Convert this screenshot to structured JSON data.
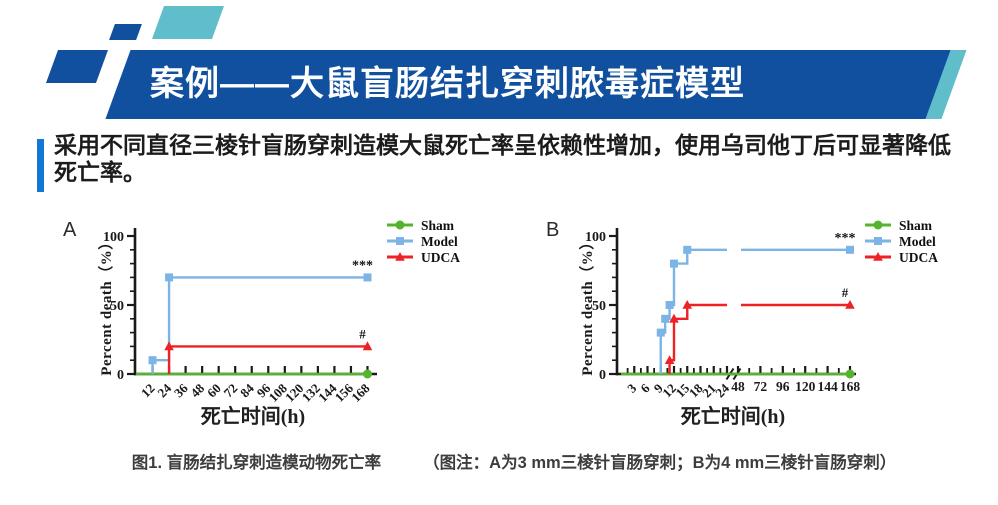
{
  "header": {
    "title": "案例——大鼠盲肠结扎穿刺脓毒症模型"
  },
  "intro": {
    "lines": [
      "采用不同直径三棱针盲肠穿刺造模大鼠死亡率呈依赖性增加，使用乌司他丁后可显著降低",
      "死亡率。"
    ]
  },
  "caption": {
    "figure_label": "图1. 盲肠结扎穿刺造模动物死亡率",
    "note": "（图注：A为3 mm三棱针盲肠穿刺；B为4 mm三棱针盲肠穿刺）"
  },
  "colors": {
    "banner_blue": "#10509f",
    "teal": "#5fbeca",
    "accent_bar": "#1377d6",
    "sham_green": "#55b42e",
    "model_blue": "#7db4e6",
    "udca_red": "#ed2224",
    "axis": "#1a1a1a",
    "text_dark": "#1c1c1c",
    "caption_gray": "#3d3d3d"
  },
  "chart_data": [
    {
      "type": "line",
      "panel_label": "A",
      "xlabel": "死亡时间(h)",
      "ylabel": "Percent death（%）",
      "ylim": [
        0,
        100
      ],
      "yticks": [
        0,
        50,
        100
      ],
      "y_minor_step": 10,
      "x_axis": {
        "break": false,
        "segments": [
          {
            "range": [
              0,
              172
            ],
            "ticks": [
              12,
              24,
              36,
              48,
              60,
              72,
              84,
              96,
              108,
              120,
              132,
              144,
              156,
              168
            ],
            "minor_step": null,
            "label_rotation": -45
          }
        ]
      },
      "legend_position": "top-right",
      "series": [
        {
          "name": "Sham",
          "color_key": "sham_green",
          "marker": "circle",
          "points": [
            [
              0,
              0
            ],
            [
              168,
              0
            ]
          ],
          "markers": [
            [
              168,
              0
            ]
          ],
          "gap_at_break": false
        },
        {
          "name": "Model",
          "color_key": "model_blue",
          "marker": "square",
          "points": [
            [
              12,
              0
            ],
            [
              12,
              10
            ],
            [
              24,
              10
            ],
            [
              24,
              70
            ],
            [
              168,
              70
            ]
          ],
          "markers": [
            [
              12,
              10
            ],
            [
              24,
              70
            ],
            [
              168,
              70
            ]
          ],
          "gap_at_break": false
        },
        {
          "name": "UDCA",
          "color_key": "udca_red",
          "marker": "triangle",
          "points": [
            [
              24,
              0
            ],
            [
              24,
              20
            ],
            [
              168,
              20
            ]
          ],
          "markers": [
            [
              24,
              20
            ],
            [
              168,
              20
            ]
          ],
          "gap_at_break": false
        }
      ],
      "annotations": [
        {
          "text": "***",
          "x": 168,
          "y": 70
        },
        {
          "text": "#",
          "x": 168,
          "y": 20
        }
      ]
    },
    {
      "type": "line",
      "panel_label": "B",
      "xlabel": "死亡时间(h)",
      "ylabel": "Percent death（%）",
      "ylim": [
        0,
        100
      ],
      "yticks": [
        0,
        50,
        100
      ],
      "y_minor_step": 10,
      "x_axis": {
        "break": true,
        "segments": [
          {
            "range": [
              0,
              24
            ],
            "ticks": [
              3,
              6,
              9,
              12,
              15,
              18,
              21,
              24
            ],
            "minor_step": 1.5,
            "label_rotation": -45
          },
          {
            "range": [
              48,
              168
            ],
            "ticks": [
              48,
              72,
              96,
              120,
              144,
              168
            ],
            "minor_step": 12,
            "label_rotation": 0
          }
        ]
      },
      "legend_position": "top-right",
      "series": [
        {
          "name": "Sham",
          "color_key": "sham_green",
          "marker": "circle",
          "points": [
            [
              0,
              0
            ],
            [
              168,
              0
            ]
          ],
          "markers": [
            [
              168,
              0
            ]
          ],
          "gap_at_break": false
        },
        {
          "name": "Model",
          "color_key": "model_blue",
          "marker": "square",
          "points": [
            [
              9,
              0
            ],
            [
              9,
              30
            ],
            [
              10,
              30
            ],
            [
              10,
              40
            ],
            [
              11,
              40
            ],
            [
              11,
              50
            ],
            [
              12,
              50
            ],
            [
              12,
              80
            ],
            [
              15,
              80
            ],
            [
              15,
              90
            ],
            [
              168,
              90
            ]
          ],
          "markers": [
            [
              9,
              30
            ],
            [
              10,
              40
            ],
            [
              11,
              50
            ],
            [
              12,
              80
            ],
            [
              15,
              90
            ],
            [
              168,
              90
            ]
          ],
          "gap_at_break": true
        },
        {
          "name": "UDCA",
          "color_key": "udca_red",
          "marker": "triangle",
          "points": [
            [
              11,
              0
            ],
            [
              11,
              10
            ],
            [
              12,
              10
            ],
            [
              12,
              40
            ],
            [
              15,
              40
            ],
            [
              15,
              50
            ],
            [
              168,
              50
            ]
          ],
          "markers": [
            [
              11,
              10
            ],
            [
              12,
              40
            ],
            [
              15,
              50
            ],
            [
              168,
              50
            ]
          ],
          "gap_at_break": true
        }
      ],
      "annotations": [
        {
          "text": "***",
          "x": 168,
          "y": 90
        },
        {
          "text": "#",
          "x": 168,
          "y": 50
        }
      ]
    }
  ]
}
